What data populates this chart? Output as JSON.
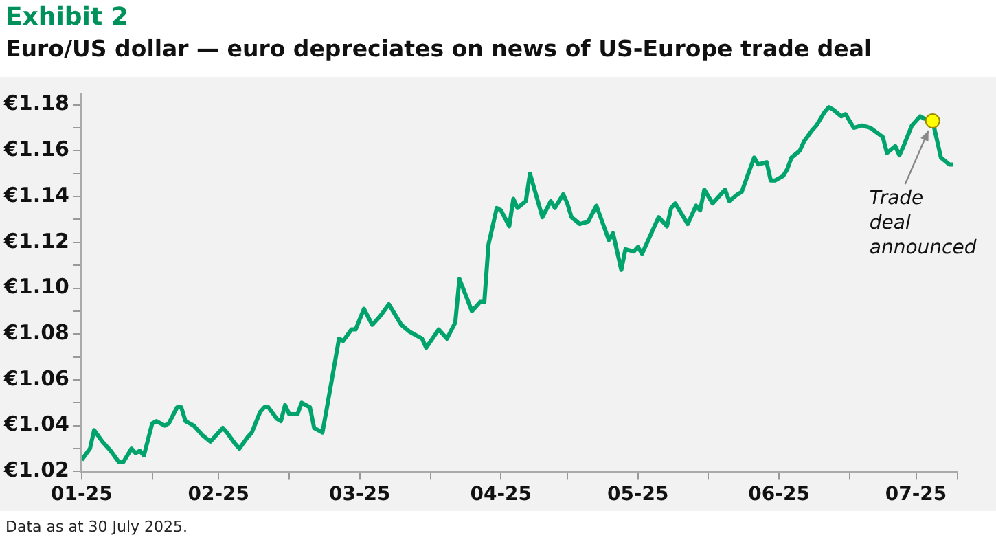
{
  "chart_data": {
    "type": "line",
    "title": "Exhibit 2",
    "subtitle": "Euro/US dollar — euro depreciates on news of US-Europe trade deal",
    "x": [
      "2025-01-01",
      "2025-01-03",
      "2025-01-04",
      "2025-01-06",
      "2025-01-08",
      "2025-01-10",
      "2025-01-11",
      "2025-01-13",
      "2025-01-14",
      "2025-01-15",
      "2025-01-16",
      "2025-01-18",
      "2025-01-19",
      "2025-01-21",
      "2025-01-22",
      "2025-01-24",
      "2025-01-25",
      "2025-01-26",
      "2025-01-28",
      "2025-01-30",
      "2025-02-01",
      "2025-02-04",
      "2025-02-05",
      "2025-02-07",
      "2025-02-08",
      "2025-02-10",
      "2025-02-11",
      "2025-02-13",
      "2025-02-14",
      "2025-02-15",
      "2025-02-17",
      "2025-02-18",
      "2025-02-19",
      "2025-02-20",
      "2025-02-22",
      "2025-02-23",
      "2025-02-25",
      "2025-02-26",
      "2025-02-28",
      "2025-03-01",
      "2025-03-04",
      "2025-03-05",
      "2025-03-07",
      "2025-03-08",
      "2025-03-10",
      "2025-03-12",
      "2025-03-14",
      "2025-03-16",
      "2025-03-19",
      "2025-03-21",
      "2025-03-24",
      "2025-03-25",
      "2025-03-28",
      "2025-03-30",
      "2025-04-01",
      "2025-04-02",
      "2025-04-05",
      "2025-04-07",
      "2025-04-08",
      "2025-04-09",
      "2025-04-11",
      "2025-04-12",
      "2025-04-14",
      "2025-04-15",
      "2025-04-16",
      "2025-04-18",
      "2025-04-19",
      "2025-04-22",
      "2025-04-24",
      "2025-04-25",
      "2025-04-27",
      "2025-04-28",
      "2025-04-29",
      "2025-05-01",
      "2025-05-03",
      "2025-05-05",
      "2025-05-08",
      "2025-05-09",
      "2025-05-11",
      "2025-05-12",
      "2025-05-14",
      "2025-05-15",
      "2025-05-16",
      "2025-05-18",
      "2025-05-20",
      "2025-05-22",
      "2025-05-23",
      "2025-05-24",
      "2025-05-27",
      "2025-05-29",
      "2025-05-30",
      "2025-05-31",
      "2025-06-02",
      "2025-06-05",
      "2025-06-06",
      "2025-06-08",
      "2025-06-09",
      "2025-06-10",
      "2025-06-12",
      "2025-06-13",
      "2025-06-15",
      "2025-06-16",
      "2025-06-17",
      "2025-06-19",
      "2025-06-20",
      "2025-06-21",
      "2025-06-23",
      "2025-06-24",
      "2025-06-26",
      "2025-06-27",
      "2025-06-29",
      "2025-06-30",
      "2025-07-01",
      "2025-07-03",
      "2025-07-04",
      "2025-07-06",
      "2025-07-08",
      "2025-07-10",
      "2025-07-13",
      "2025-07-14",
      "2025-07-16",
      "2025-07-17",
      "2025-07-18",
      "2025-07-20",
      "2025-07-22",
      "2025-07-23",
      "2025-07-25",
      "2025-07-27",
      "2025-07-29",
      "2025-07-30"
    ],
    "series": [
      {
        "color": "#00a36c",
        "values": [
          1.025,
          1.03,
          1.038,
          1.033,
          1.029,
          1.024,
          1.024,
          1.03,
          1.028,
          1.029,
          1.027,
          1.041,
          1.042,
          1.04,
          1.041,
          1.048,
          1.048,
          1.042,
          1.04,
          1.036,
          1.033,
          1.039,
          1.037,
          1.032,
          1.03,
          1.035,
          1.037,
          1.046,
          1.048,
          1.048,
          1.043,
          1.042,
          1.049,
          1.045,
          1.045,
          1.05,
          1.048,
          1.039,
          1.037,
          1.047,
          1.078,
          1.077,
          1.082,
          1.082,
          1.091,
          1.084,
          1.088,
          1.093,
          1.084,
          1.081,
          1.078,
          1.074,
          1.082,
          1.078,
          1.085,
          1.104,
          1.09,
          1.094,
          1.094,
          1.119,
          1.135,
          1.134,
          1.127,
          1.139,
          1.135,
          1.138,
          1.15,
          1.131,
          1.138,
          1.135,
          1.141,
          1.137,
          1.131,
          1.128,
          1.129,
          1.136,
          1.121,
          1.124,
          1.108,
          1.117,
          1.116,
          1.118,
          1.115,
          1.123,
          1.131,
          1.127,
          1.135,
          1.137,
          1.128,
          1.136,
          1.134,
          1.143,
          1.137,
          1.143,
          1.138,
          1.141,
          1.142,
          1.147,
          1.157,
          1.154,
          1.155,
          1.147,
          1.147,
          1.149,
          1.152,
          1.157,
          1.16,
          1.164,
          1.169,
          1.171,
          1.177,
          1.179,
          1.178,
          1.175,
          1.176,
          1.17,
          1.171,
          1.17,
          1.166,
          1.159,
          1.162,
          1.158,
          1.162,
          1.171,
          1.175,
          1.174,
          1.173,
          1.157,
          1.154,
          1.154
        ]
      },
      {
        "type": "scatter",
        "marker": "circle",
        "color": "#ffff00",
        "x": [
          "2025-07-25"
        ],
        "values": [
          1.173
        ]
      }
    ],
    "xlim": [
      "2025-01-01",
      "2025-07-31"
    ],
    "xticks": [
      {
        "value": "2025-01-01",
        "label": "01-25"
      },
      {
        "value": "2025-01-18",
        "label": null
      },
      {
        "value": "2025-02-03",
        "label": "02-25"
      },
      {
        "value": "2025-02-20",
        "label": null
      },
      {
        "value": "2025-03-09",
        "label": "03-25"
      },
      {
        "value": "2025-03-26",
        "label": null
      },
      {
        "value": "2025-04-12",
        "label": "04-25"
      },
      {
        "value": "2025-04-28",
        "label": null
      },
      {
        "value": "2025-05-15",
        "label": "05-25"
      },
      {
        "value": "2025-06-01",
        "label": null
      },
      {
        "value": "2025-06-18",
        "label": "06-25"
      },
      {
        "value": "2025-07-05",
        "label": null
      },
      {
        "value": "2025-07-21",
        "label": "07-25"
      },
      {
        "value": "2025-07-31",
        "label": null
      }
    ],
    "ylim": [
      1.02,
      1.185
    ],
    "yticks": [
      {
        "value": 1.02,
        "label": "€1.02"
      },
      {
        "value": 1.03,
        "label": null
      },
      {
        "value": 1.04,
        "label": "€1.04"
      },
      {
        "value": 1.05,
        "label": null
      },
      {
        "value": 1.06,
        "label": "€1.06"
      },
      {
        "value": 1.07,
        "label": null
      },
      {
        "value": 1.08,
        "label": "€1.08"
      },
      {
        "value": 1.09,
        "label": null
      },
      {
        "value": 1.1,
        "label": "€1.10"
      },
      {
        "value": 1.11,
        "label": null
      },
      {
        "value": 1.12,
        "label": "€1.12"
      },
      {
        "value": 1.13,
        "label": null
      },
      {
        "value": 1.14,
        "label": "€1.14"
      },
      {
        "value": 1.15,
        "label": null
      },
      {
        "value": 1.16,
        "label": "€1.16"
      },
      {
        "value": 1.17,
        "label": null
      },
      {
        "value": 1.18,
        "label": "€1.18"
      }
    ],
    "annotations": [
      {
        "text": "Trade deal announced",
        "x": "2025-07-25",
        "y": 1.173
      },
      "Data as at 30 July 2025."
    ],
    "marker": "none",
    "line_style": "solid",
    "grid": false,
    "legend": false
  }
}
